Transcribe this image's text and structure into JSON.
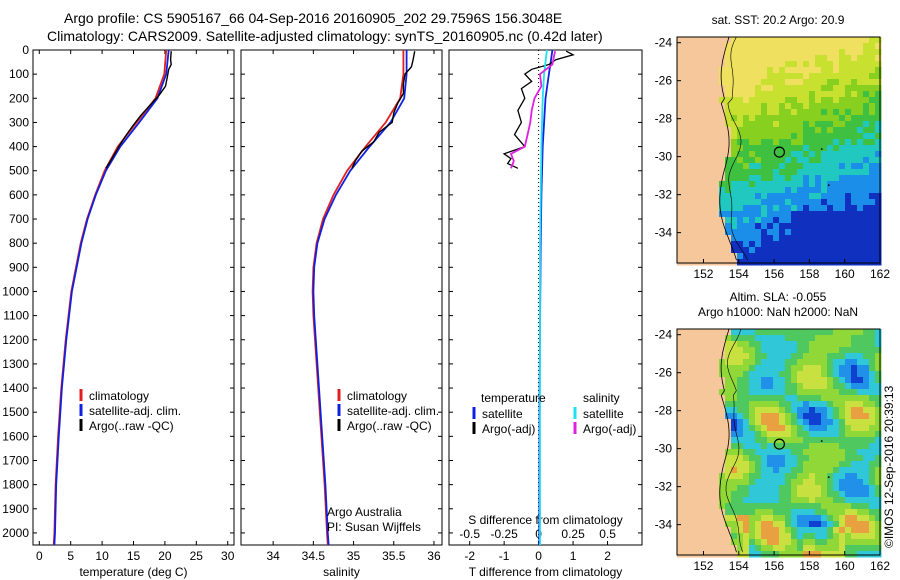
{
  "title_line1": "Argo profile: CS 5905167_66 04-Sep-2016 20160905_202 29.7596S 156.3048E",
  "title_line2": "Climatology: CARS2009. Satellite-adjusted climatology: synTS_20160905.nc (0.42d later)",
  "colors": {
    "climatology": "#e02020",
    "satellite": "#1020e0",
    "argo": "#000000",
    "sat_sal": "#20e0f0",
    "argo_sal": "#e020e0",
    "land": "#f5c79a"
  },
  "chart_data": [
    {
      "type": "line",
      "id": "temperature",
      "xlabel": "temperature (deg C)",
      "ylabel": "",
      "xlim": [
        -1,
        31
      ],
      "ylim": [
        2050,
        0
      ],
      "xticks": [
        0,
        5,
        10,
        15,
        20,
        25,
        30
      ],
      "xtick_labels": [
        "0",
        "5",
        "10",
        "15",
        "20",
        "25",
        "30"
      ],
      "yticks": [
        0,
        100,
        200,
        300,
        400,
        500,
        600,
        700,
        800,
        900,
        1000,
        1100,
        1200,
        1300,
        1400,
        1500,
        1600,
        1700,
        1800,
        1900,
        2000
      ],
      "ytick_labels": [
        "0",
        "100",
        "200",
        "300",
        "400",
        "500",
        "600",
        "700",
        "800",
        "900",
        "1000",
        "1100",
        "1200",
        "1300",
        "1400",
        "1500",
        "1600",
        "1700",
        "1800",
        "1900",
        "2000"
      ],
      "legend": [
        "climatology",
        "satellite-adj. clim.",
        "Argo(..raw -QC)"
      ],
      "series": [
        {
          "name": "climatology",
          "depth": [
            0,
            100,
            200,
            300,
            400,
            500,
            600,
            700,
            800,
            1000,
            1200,
            1400,
            1600,
            1800,
            2000,
            2050
          ],
          "values": [
            20.2,
            19.9,
            18.5,
            15.5,
            12.5,
            10.4,
            8.9,
            7.6,
            6.6,
            5.1,
            4.2,
            3.5,
            3.0,
            2.6,
            2.4,
            2.3
          ]
        },
        {
          "name": "satellite-adj. clim.",
          "depth": [
            0,
            100,
            200,
            300,
            400,
            500,
            600,
            700,
            800,
            1000,
            1200,
            1400,
            1600,
            1800,
            2000,
            2050
          ],
          "values": [
            20.6,
            20.2,
            18.8,
            15.9,
            12.9,
            10.6,
            9.0,
            7.7,
            6.7,
            5.2,
            4.3,
            3.6,
            3.1,
            2.7,
            2.5,
            2.4
          ]
        },
        {
          "name": "Argo(..raw -QC)",
          "depth": [
            5,
            40,
            60,
            80,
            110,
            150,
            190,
            230,
            270,
            310,
            350,
            390,
            430,
            470,
            490
          ],
          "values": [
            21.0,
            20.9,
            21.0,
            20.6,
            20.4,
            20.1,
            19.0,
            17.6,
            16.2,
            15.0,
            13.9,
            12.9,
            12.0,
            11.1,
            10.6
          ]
        }
      ]
    },
    {
      "type": "line",
      "id": "salinity",
      "xlabel": "salinity",
      "ylabel": "",
      "xlim": [
        33.6,
        36.1
      ],
      "ylim": [
        2050,
        0
      ],
      "xticks": [
        34,
        34.5,
        35,
        35.5,
        36
      ],
      "xtick_labels": [
        "34",
        "34.5",
        "35",
        "35.5",
        "36"
      ],
      "legend": [
        "climatology",
        "satellite-adj. clim.",
        "Argo(..raw -QC)"
      ],
      "annotation": [
        "Argo Australia",
        "PI: Susan Wijffels"
      ],
      "series": [
        {
          "name": "climatology",
          "depth": [
            0,
            100,
            200,
            300,
            400,
            500,
            600,
            700,
            800,
            900,
            1000,
            1100,
            1200,
            1400,
            1600,
            1800,
            2000,
            2050
          ],
          "values": [
            35.62,
            35.62,
            35.58,
            35.4,
            35.15,
            34.92,
            34.75,
            34.62,
            34.54,
            34.5,
            34.49,
            34.5,
            34.52,
            34.56,
            34.6,
            34.64,
            34.67,
            34.68
          ]
        },
        {
          "name": "satellite-adj. clim.",
          "depth": [
            0,
            100,
            200,
            300,
            400,
            500,
            600,
            700,
            800,
            900,
            1000,
            1100,
            1200,
            1400,
            1600,
            1800,
            2000,
            2050
          ],
          "values": [
            35.66,
            35.66,
            35.63,
            35.46,
            35.2,
            34.96,
            34.78,
            34.64,
            34.55,
            34.51,
            34.5,
            34.51,
            34.53,
            34.57,
            34.61,
            34.65,
            34.68,
            34.69
          ]
        },
        {
          "name": "Argo(..raw -QC)",
          "depth": [
            5,
            40,
            70,
            100,
            140,
            180,
            220,
            260,
            300,
            340,
            380,
            420,
            460,
            490
          ],
          "values": [
            35.76,
            35.74,
            35.72,
            35.64,
            35.62,
            35.62,
            35.55,
            35.5,
            35.48,
            35.32,
            35.25,
            35.1,
            35.02,
            34.98
          ]
        }
      ]
    },
    {
      "type": "line",
      "id": "difference",
      "xlabel": "T difference from climatology",
      "top_label": "S difference from climatology",
      "xlim": [
        -2.6,
        3.0
      ],
      "ylim": [
        2050,
        0
      ],
      "xticks": [
        -2,
        -1,
        0,
        1,
        2
      ],
      "xtick_labels": [
        "-2",
        "-1",
        "0",
        "1",
        "2"
      ],
      "sticks": [
        -0.5,
        -0.25,
        0,
        0.25,
        0.5
      ],
      "stick_labels": [
        "-0.5",
        "-0.25",
        "0",
        "0.25",
        "0.5"
      ],
      "legend_left_title": "temperature",
      "legend_right_title": "salinity",
      "legend": [
        "satellite",
        "Argo(-adj)",
        "satellite",
        "Argo(-adj)"
      ],
      "series": [
        {
          "name": "T satellite",
          "depth": [
            0,
            50,
            100,
            200,
            400,
            600,
            800,
            1000,
            1400,
            2000,
            2050
          ],
          "values": [
            0.4,
            0.35,
            0.3,
            0.2,
            0.12,
            0.08,
            0.06,
            0.05,
            0.03,
            0.02,
            0.02
          ]
        },
        {
          "name": "T Argo(-adj)",
          "depth": [
            5,
            20,
            40,
            60,
            80,
            100,
            130,
            160,
            200,
            250,
            300,
            350,
            400,
            430,
            450,
            470,
            490
          ],
          "values": [
            0.8,
            1.0,
            0.5,
            0.3,
            -0.2,
            -0.4,
            -0.2,
            -0.5,
            -0.4,
            -0.6,
            -0.5,
            -0.7,
            -0.4,
            -1.0,
            -0.8,
            -0.9,
            -0.6
          ]
        },
        {
          "name": "S satellite",
          "depth": [
            0,
            50,
            100,
            200,
            400,
            600,
            800,
            1000,
            1400,
            2000,
            2050
          ],
          "values": [
            0.06,
            0.05,
            0.04,
            0.03,
            0.02,
            0.015,
            0.01,
            0.01,
            0.01,
            0.01,
            0.01
          ]
        },
        {
          "name": "S Argo(-adj)",
          "depth": [
            5,
            30,
            60,
            100,
            150,
            200,
            250,
            300,
            350,
            400,
            430,
            460,
            490
          ],
          "values": [
            0.12,
            0.11,
            0.1,
            0.01,
            0.02,
            -0.03,
            -0.05,
            -0.06,
            -0.08,
            -0.1,
            -0.2,
            -0.18,
            -0.2
          ]
        }
      ]
    },
    {
      "type": "heatmap",
      "id": "sst_map",
      "title": "sat. SST: 20.2 Argo: 20.9",
      "xticks": [
        152,
        154,
        156,
        158,
        160,
        162
      ],
      "xtick_labels": [
        "152",
        "154",
        "156",
        "158",
        "160",
        "162"
      ],
      "yticks": [
        -24,
        -26,
        -28,
        -30,
        -32,
        -34
      ],
      "ytick_labels": [
        "-24",
        "-26",
        "-28",
        "-30",
        "-32",
        "-34"
      ],
      "xlim": [
        150.5,
        162
      ],
      "ylim": [
        -35.6,
        -23.7
      ],
      "argo_position": [
        156.3,
        -29.76
      ]
    },
    {
      "type": "heatmap",
      "id": "sla_map",
      "title_line1": "Altim. SLA: -0.055",
      "title_line2": "Argo h1000: NaN h2000: NaN",
      "xticks": [
        152,
        154,
        156,
        158,
        160,
        162
      ],
      "xtick_labels": [
        "152",
        "154",
        "156",
        "158",
        "160",
        "162"
      ],
      "yticks": [
        -24,
        -26,
        -28,
        -30,
        -32,
        -34
      ],
      "ytick_labels": [
        "-24",
        "-26",
        "-28",
        "-30",
        "-32",
        "-34"
      ],
      "xlim": [
        150.5,
        162
      ],
      "ylim": [
        -35.6,
        -23.7
      ],
      "argo_position": [
        156.3,
        -29.76
      ],
      "side_label": "©IMOS 12-Sep-2016 20:39:13"
    }
  ]
}
